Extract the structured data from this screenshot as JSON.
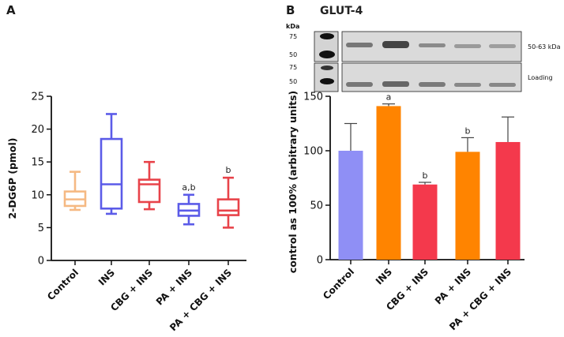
{
  "panels": {
    "a_label": "A",
    "b_label": "B",
    "blot_title": "GLUT-4"
  },
  "blot": {
    "kda_header": "kDa",
    "top_markers": [
      "75",
      "50"
    ],
    "bottom_markers": [
      "75",
      "50"
    ],
    "top_band_label": "50-63 kDa",
    "bottom_band_label": "Loading"
  },
  "chart_data": [
    {
      "id": "A",
      "type": "boxplot",
      "ylabel": "2-DG6P (pmol)",
      "xlabel": "",
      "ylim": [
        0,
        25
      ],
      "yticks": [
        0,
        5,
        10,
        15,
        20,
        25
      ],
      "categories": [
        "Control",
        "INS",
        "CBG + INS",
        "PA + INS",
        "PA + CBG + INS"
      ],
      "series": [
        {
          "min": 7.7,
          "q1": 8.3,
          "median": 9.3,
          "q3": 10.5,
          "max": 13.5,
          "color": "#F5B983",
          "annotation": ""
        },
        {
          "min": 7.1,
          "q1": 7.9,
          "median": 11.6,
          "q3": 18.5,
          "max": 22.3,
          "color": "#5B5BE8",
          "annotation": ""
        },
        {
          "min": 7.8,
          "q1": 8.9,
          "median": 11.6,
          "q3": 12.3,
          "max": 15.0,
          "color": "#E8434A",
          "annotation": ""
        },
        {
          "min": 5.5,
          "q1": 6.8,
          "median": 7.6,
          "q3": 8.6,
          "max": 10.0,
          "color": "#5B5BE8",
          "annotation": "a,b"
        },
        {
          "min": 5.0,
          "q1": 6.9,
          "median": 7.6,
          "q3": 9.3,
          "max": 12.6,
          "color": "#E8434A",
          "annotation": "b"
        }
      ],
      "grid": false,
      "legend": "none"
    },
    {
      "id": "B",
      "type": "bar",
      "ylabel": "control as 100% (arbitrary units)",
      "xlabel": "",
      "ylim": [
        0,
        150
      ],
      "yticks": [
        0,
        50,
        100,
        150
      ],
      "categories": [
        "Control",
        "INS",
        "CBG + INS",
        "PA + INS",
        "PA + CBG + INS"
      ],
      "values": [
        100,
        141,
        69,
        99,
        108
      ],
      "errors": [
        25,
        2,
        2,
        13,
        23
      ],
      "colors": [
        "#8F8FF5",
        "#FF8400",
        "#F4394C",
        "#FF8400",
        "#F4394C"
      ],
      "annotations": [
        "",
        "a",
        "b",
        "b",
        ""
      ],
      "grid": false,
      "legend": "none"
    }
  ]
}
